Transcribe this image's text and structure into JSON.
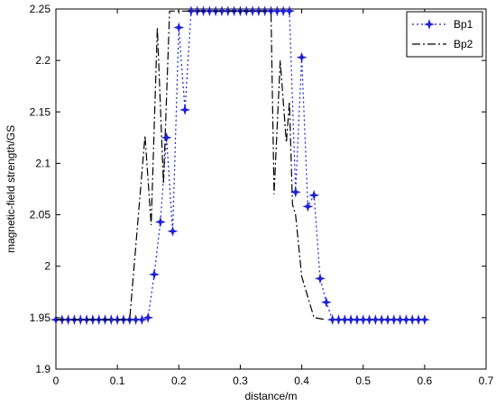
{
  "chart_data": {
    "type": "line",
    "title": "",
    "xlabel": "distance/m",
    "ylabel": "magnetic-field strength/GS",
    "xlim": [
      0,
      0.7
    ],
    "ylim": [
      1.9,
      2.25
    ],
    "xticks": [
      "0",
      "0.1",
      "0.2",
      "0.3",
      "0.4",
      "0.5",
      "0.6",
      "0.7"
    ],
    "yticks": [
      "1.9",
      "1.95",
      "2",
      "2.05",
      "2.1",
      "2.15",
      "2.2",
      "2.25"
    ],
    "grid": false,
    "legend": {
      "position": "top-right",
      "entries": [
        "Bp1",
        "Bp2"
      ]
    },
    "colors": {
      "Bp1": "#1f1fd6",
      "Bp2": "#000000"
    },
    "series": [
      {
        "name": "Bp1",
        "style": "dotted-star",
        "x": [
          0,
          0.01,
          0.02,
          0.03,
          0.04,
          0.05,
          0.06,
          0.07,
          0.08,
          0.09,
          0.1,
          0.11,
          0.12,
          0.13,
          0.14,
          0.15,
          0.16,
          0.17,
          0.18,
          0.19,
          0.2,
          0.21,
          0.22,
          0.23,
          0.24,
          0.25,
          0.26,
          0.27,
          0.28,
          0.29,
          0.3,
          0.31,
          0.32,
          0.33,
          0.34,
          0.35,
          0.36,
          0.37,
          0.38,
          0.39,
          0.4,
          0.41,
          0.42,
          0.43,
          0.44,
          0.45,
          0.46,
          0.47,
          0.48,
          0.49,
          0.5,
          0.51,
          0.52,
          0.53,
          0.54,
          0.55,
          0.56,
          0.57,
          0.58,
          0.59,
          0.6
        ],
        "y": [
          1.948,
          1.948,
          1.948,
          1.948,
          1.948,
          1.948,
          1.948,
          1.948,
          1.948,
          1.948,
          1.948,
          1.948,
          1.948,
          1.948,
          1.948,
          1.95,
          1.992,
          2.043,
          2.125,
          2.034,
          2.232,
          2.152,
          2.248,
          2.248,
          2.248,
          2.248,
          2.248,
          2.248,
          2.248,
          2.248,
          2.248,
          2.248,
          2.248,
          2.248,
          2.248,
          2.248,
          2.248,
          2.248,
          2.248,
          2.072,
          2.203,
          2.058,
          2.069,
          1.988,
          1.965,
          1.948,
          1.948,
          1.948,
          1.948,
          1.948,
          1.948,
          1.948,
          1.948,
          1.948,
          1.948,
          1.948,
          1.948,
          1.948,
          1.948,
          1.948,
          1.948
        ]
      },
      {
        "name": "Bp2",
        "style": "dash-dot",
        "x": [
          0,
          0.12,
          0.145,
          0.155,
          0.165,
          0.175,
          0.185,
          0.195,
          0.35,
          0.355,
          0.365,
          0.375,
          0.38,
          0.385,
          0.39,
          0.4,
          0.42,
          0.44
        ],
        "y": [
          1.948,
          1.948,
          2.127,
          2.04,
          2.232,
          2.08,
          2.248,
          2.248,
          2.248,
          2.07,
          2.2,
          2.12,
          2.16,
          2.06,
          2.05,
          1.99,
          1.95,
          1.948
        ]
      }
    ]
  }
}
